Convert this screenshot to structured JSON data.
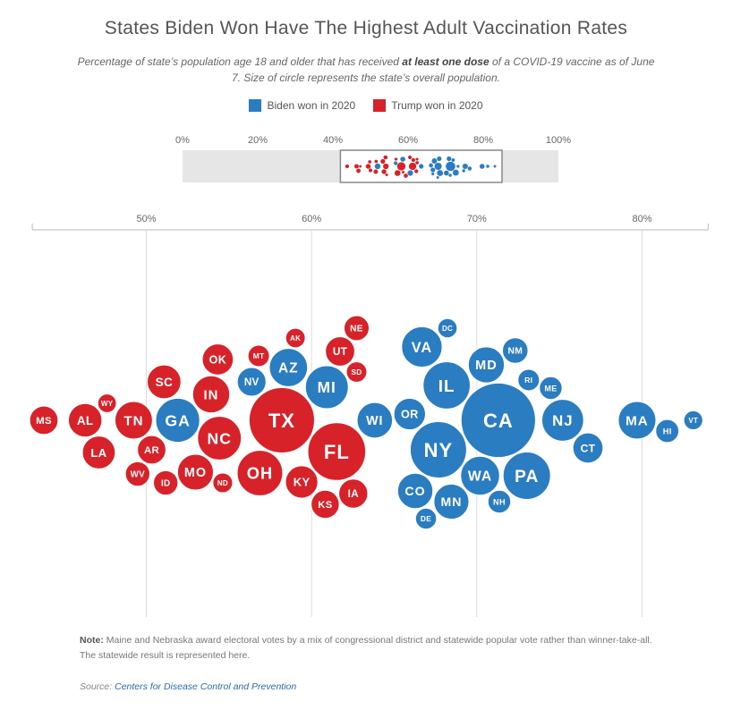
{
  "header": {
    "title": "States Biden Won Have The Highest Adult Vaccination Rates",
    "subtitle_before": "Percentage of state’s population age 18 and older that has received ",
    "subtitle_bold": "at least one dose",
    "subtitle_after": " of a COVID-19 vaccine as of June 7. Size of circle represents the state’s overall population."
  },
  "legend": [
    {
      "label": "Biden won in 2020",
      "color": "#2a7dc1"
    },
    {
      "label": "Trump won in 2020",
      "color": "#d8222a"
    }
  ],
  "colors": {
    "biden": "#2a7dc1",
    "trump": "#d8222a",
    "grid": "#dddddd",
    "range_fill": "#e6e6e6",
    "range_box": "#888888"
  },
  "chart_data": {
    "type": "scatter",
    "variant": "beeswarm bubble",
    "xlabel": "",
    "ylabel": "",
    "overview_axis": {
      "range": [
        0,
        100
      ],
      "ticks": [
        "0%",
        "20%",
        "40%",
        "60%",
        "80%",
        "100%"
      ],
      "zoom_window": [
        42,
        85
      ]
    },
    "main_axis": {
      "range": [
        43.1,
        84.0
      ],
      "ticks": [
        {
          "v": 50,
          "label": "50%"
        },
        {
          "v": 60,
          "label": "60%"
        },
        {
          "v": 70,
          "label": "70%"
        },
        {
          "v": 80,
          "label": "80%"
        }
      ]
    },
    "grid": true,
    "size_encoding": "state population",
    "states": [
      {
        "abbr": "MS",
        "party": "trump",
        "value": 43.8,
        "pop": 3.0
      },
      {
        "abbr": "AL",
        "party": "trump",
        "value": 46.3,
        "pop": 5.0
      },
      {
        "abbr": "WY",
        "party": "trump",
        "value": 47.3,
        "pop": 0.58
      },
      {
        "abbr": "LA",
        "party": "trump",
        "value": 46.8,
        "pop": 4.7
      },
      {
        "abbr": "TN",
        "party": "trump",
        "value": 49.4,
        "pop": 6.9
      },
      {
        "abbr": "AR",
        "party": "trump",
        "value": 50.0,
        "pop": 3.0
      },
      {
        "abbr": "WV",
        "party": "trump",
        "value": 49.8,
        "pop": 1.8
      },
      {
        "abbr": "ID",
        "party": "trump",
        "value": 51.5,
        "pop": 1.8
      },
      {
        "abbr": "SC",
        "party": "trump",
        "value": 51.4,
        "pop": 5.1
      },
      {
        "abbr": "GA",
        "party": "biden",
        "value": 51.9,
        "pop": 10.7
      },
      {
        "abbr": "OK",
        "party": "trump",
        "value": 54.0,
        "pop": 3.96
      },
      {
        "abbr": "ND",
        "party": "trump",
        "value": 54.3,
        "pop": 0.76
      },
      {
        "abbr": "NC",
        "party": "trump",
        "value": 54.1,
        "pop": 10.5
      },
      {
        "abbr": "IN",
        "party": "trump",
        "value": 53.6,
        "pop": 6.7
      },
      {
        "abbr": "MO",
        "party": "trump",
        "value": 53.3,
        "pop": 6.1
      },
      {
        "abbr": "MT",
        "party": "trump",
        "value": 56.8,
        "pop": 1.07
      },
      {
        "abbr": "OH",
        "party": "trump",
        "value": 57.2,
        "pop": 11.7
      },
      {
        "abbr": "NV",
        "party": "biden",
        "value": 56.7,
        "pop": 3.1
      },
      {
        "abbr": "TX",
        "party": "trump",
        "value": 58.2,
        "pop": 29.0
      },
      {
        "abbr": "AK",
        "party": "trump",
        "value": 58.7,
        "pop": 0.73
      },
      {
        "abbr": "AZ",
        "party": "biden",
        "value": 58.6,
        "pop": 7.3
      },
      {
        "abbr": "KY",
        "party": "trump",
        "value": 59.4,
        "pop": 4.5
      },
      {
        "abbr": "MI",
        "party": "biden",
        "value": 60.6,
        "pop": 10.0
      },
      {
        "abbr": "KS",
        "party": "trump",
        "value": 60.5,
        "pop": 2.9
      },
      {
        "abbr": "FL",
        "party": "trump",
        "value": 61.2,
        "pop": 21.5
      },
      {
        "abbr": "UT",
        "party": "trump",
        "value": 61.4,
        "pop": 3.3
      },
      {
        "abbr": "SD",
        "party": "trump",
        "value": 62.4,
        "pop": 0.89
      },
      {
        "abbr": "IA",
        "party": "trump",
        "value": 62.2,
        "pop": 3.2
      },
      {
        "abbr": "NE",
        "party": "trump",
        "value": 62.4,
        "pop": 1.96
      },
      {
        "abbr": "WI",
        "party": "biden",
        "value": 63.5,
        "pop": 5.9
      },
      {
        "abbr": "OR",
        "party": "biden",
        "value": 66.1,
        "pop": 4.2
      },
      {
        "abbr": "CO",
        "party": "biden",
        "value": 66.6,
        "pop": 5.8
      },
      {
        "abbr": "DE",
        "party": "biden",
        "value": 66.6,
        "pop": 0.99
      },
      {
        "abbr": "VA",
        "party": "biden",
        "value": 67.0,
        "pop": 8.6
      },
      {
        "abbr": "DC",
        "party": "biden",
        "value": 67.9,
        "pop": 0.69
      },
      {
        "abbr": "NY",
        "party": "biden",
        "value": 68.0,
        "pop": 20.2
      },
      {
        "abbr": "MN",
        "party": "biden",
        "value": 68.3,
        "pop": 5.7
      },
      {
        "abbr": "IL",
        "party": "biden",
        "value": 68.5,
        "pop": 12.8
      },
      {
        "abbr": "WA",
        "party": "biden",
        "value": 70.2,
        "pop": 7.7
      },
      {
        "abbr": "MD",
        "party": "biden",
        "value": 70.9,
        "pop": 6.2
      },
      {
        "abbr": "NH",
        "party": "biden",
        "value": 71.2,
        "pop": 1.38
      },
      {
        "abbr": "CA",
        "party": "biden",
        "value": 71.3,
        "pop": 39.5
      },
      {
        "abbr": "NM",
        "party": "biden",
        "value": 72.0,
        "pop": 2.1
      },
      {
        "abbr": "PA",
        "party": "biden",
        "value": 72.7,
        "pop": 13.0
      },
      {
        "abbr": "RI",
        "party": "biden",
        "value": 73.3,
        "pop": 1.1
      },
      {
        "abbr": "ME",
        "party": "biden",
        "value": 74.8,
        "pop": 1.36
      },
      {
        "abbr": "NJ",
        "party": "biden",
        "value": 75.2,
        "pop": 9.3
      },
      {
        "abbr": "CT",
        "party": "biden",
        "value": 76.4,
        "pop": 3.6
      },
      {
        "abbr": "MA",
        "party": "biden",
        "value": 79.7,
        "pop": 7.0
      },
      {
        "abbr": "HI",
        "party": "biden",
        "value": 81.2,
        "pop": 1.46
      },
      {
        "abbr": "VT",
        "party": "biden",
        "value": 83.1,
        "pop": 0.64
      }
    ]
  },
  "note": {
    "label": "Note:",
    "text": " Maine and Nebraska award electoral votes by a mix of congressional district and statewide popular vote rather than winner-take-all. The statewide result is represented here."
  },
  "source": {
    "label": "Source: ",
    "link": "Centers for Disease Control and Prevention"
  }
}
